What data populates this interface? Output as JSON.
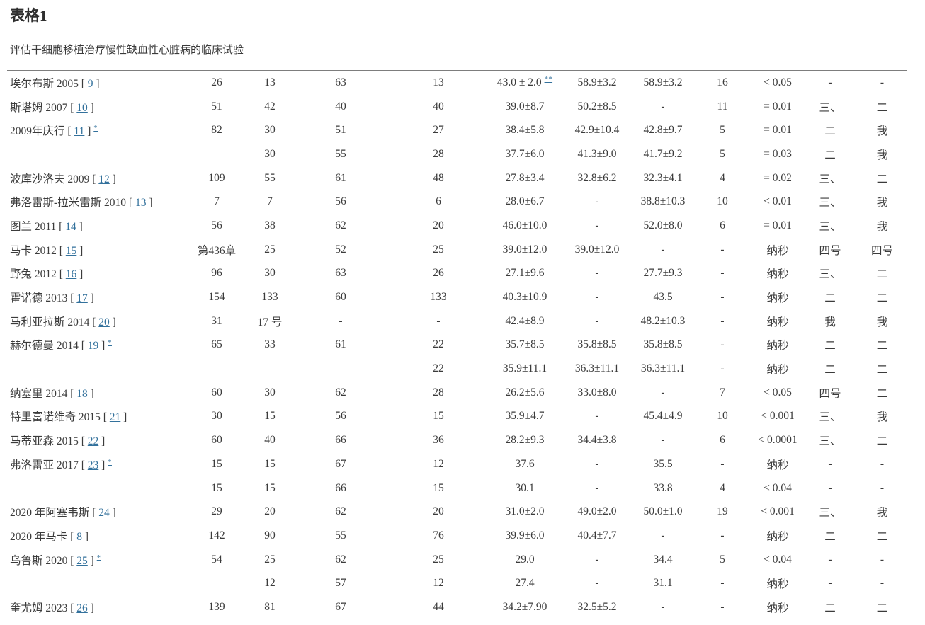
{
  "page": {
    "title": "表格1",
    "subtitle": "评估干细胞移植治疗慢性缺血性心脏病的临床试验"
  },
  "colors": {
    "text": "#3b3b3b",
    "link": "#33719c",
    "rule": "#7d7d7d"
  },
  "table": {
    "rows": [
      {
        "study": "埃尔布斯 2005",
        "ref": "9",
        "note": "",
        "lvef_sup": "**",
        "cells": [
          "26",
          "13",
          "63",
          "13",
          "43.0 ± 2.0",
          "58.9±3.2",
          "58.9±3.2",
          "16",
          "< 0.05",
          "-",
          "-"
        ]
      },
      {
        "study": "斯塔姆 2007",
        "ref": "10",
        "note": "",
        "lvef_sup": "",
        "cells": [
          "51",
          "42",
          "40",
          "40",
          "39.0±8.7",
          "50.2±8.5",
          "-",
          "11",
          "= 0.01",
          "三、",
          "二"
        ]
      },
      {
        "study": "2009年庆行",
        "ref": "11",
        "note": "*",
        "lvef_sup": "",
        "cells": [
          "82",
          "30",
          "51",
          "27",
          "38.4±5.8",
          "42.9±10.4",
          "42.8±9.7",
          "5",
          "= 0.01",
          "二",
          "我"
        ]
      },
      {
        "study": "",
        "ref": "",
        "note": "",
        "lvef_sup": "",
        "cells": [
          "",
          "30",
          "55",
          "28",
          "37.7±6.0",
          "41.3±9.0",
          "41.7±9.2",
          "5",
          "= 0.03",
          "二",
          "我"
        ]
      },
      {
        "study": "波库沙洛夫 2009",
        "ref": "12",
        "note": "",
        "lvef_sup": "",
        "cells": [
          "109",
          "55",
          "61",
          "48",
          "27.8±3.4",
          "32.8±6.2",
          "32.3±4.1",
          "4",
          "= 0.02",
          "三、",
          "二"
        ]
      },
      {
        "study": "弗洛雷斯-拉米雷斯 2010",
        "ref": "13",
        "note": "",
        "lvef_sup": "",
        "cells": [
          "7",
          "7",
          "56",
          "6",
          "28.0±6.7",
          "-",
          "38.8±10.3",
          "10",
          "< 0.01",
          "三、",
          "我"
        ]
      },
      {
        "study": "图兰 2011",
        "ref": "14",
        "note": "",
        "lvef_sup": "",
        "cells": [
          "56",
          "38",
          "62",
          "20",
          "46.0±10.0",
          "-",
          "52.0±8.0",
          "6",
          "= 0.01",
          "三、",
          "我"
        ]
      },
      {
        "study": "马卡 2012",
        "ref": "15",
        "note": "",
        "lvef_sup": "",
        "cells": [
          "第436章",
          "25",
          "52",
          "25",
          "39.0±12.0",
          "39.0±12.0",
          "-",
          "-",
          "纳秒",
          "四号",
          "四号"
        ]
      },
      {
        "study": "野兔 2012",
        "ref": "16",
        "note": "",
        "lvef_sup": "",
        "cells": [
          "96",
          "30",
          "63",
          "26",
          "27.1±9.6",
          "-",
          "27.7±9.3",
          "-",
          "纳秒",
          "三、",
          "二"
        ]
      },
      {
        "study": "霍诺德 2013",
        "ref": "17",
        "note": "",
        "lvef_sup": "",
        "cells": [
          "154",
          "133",
          "60",
          "133",
          "40.3±10.9",
          "-",
          "43.5",
          "-",
          "纳秒",
          "二",
          "二"
        ]
      },
      {
        "study": "马利亚拉斯 2014",
        "ref": "20",
        "note": "",
        "lvef_sup": "",
        "cells": [
          "31",
          "17 号",
          "-",
          "-",
          "42.4±8.9",
          "-",
          "48.2±10.3",
          "-",
          "纳秒",
          "我",
          "我"
        ]
      },
      {
        "study": "赫尔德曼 2014",
        "ref": "19",
        "note": "*",
        "lvef_sup": "",
        "cells": [
          "65",
          "33",
          "61",
          "22",
          "35.7±8.5",
          "35.8±8.5",
          "35.8±8.5",
          "-",
          "纳秒",
          "二",
          "二"
        ]
      },
      {
        "study": "",
        "ref": "",
        "note": "",
        "lvef_sup": "",
        "cells": [
          "",
          "",
          "",
          "22",
          "35.9±11.1",
          "36.3±11.1",
          "36.3±11.1",
          "-",
          "纳秒",
          "二",
          "二"
        ]
      },
      {
        "study": "纳塞里 2014",
        "ref": "18",
        "note": "",
        "lvef_sup": "",
        "cells": [
          "60",
          "30",
          "62",
          "28",
          "26.2±5.6",
          "33.0±8.0",
          "-",
          "7",
          "< 0.05",
          "四号",
          "二"
        ]
      },
      {
        "study": "特里富诺维奇 2015",
        "ref": "21",
        "note": "",
        "lvef_sup": "",
        "cells": [
          "30",
          "15",
          "56",
          "15",
          "35.9±4.7",
          "-",
          "45.4±4.9",
          "10",
          "< 0.001",
          "三、",
          "我"
        ]
      },
      {
        "study": "马蒂亚森 2015",
        "ref": "22",
        "note": "",
        "lvef_sup": "",
        "cells": [
          "60",
          "40",
          "66",
          "36",
          "28.2±9.3",
          "34.4±3.8",
          "-",
          "6",
          "< 0.0001",
          "三、",
          "二"
        ]
      },
      {
        "study": "弗洛雷亚 2017",
        "ref": "23",
        "note": "*",
        "lvef_sup": "",
        "cells": [
          "15",
          "15",
          "67",
          "12",
          "37.6",
          "-",
          "35.5",
          "-",
          "纳秒",
          "-",
          "-"
        ]
      },
      {
        "study": "",
        "ref": "",
        "note": "",
        "lvef_sup": "",
        "cells": [
          "15",
          "15",
          "66",
          "15",
          "30.1",
          "-",
          "33.8",
          "4",
          "< 0.04",
          "-",
          "-"
        ]
      },
      {
        "study": "2020 年阿塞韦斯",
        "ref": "24",
        "note": "",
        "lvef_sup": "",
        "cells": [
          "29",
          "20",
          "62",
          "20",
          "31.0±2.0",
          "49.0±2.0",
          "50.0±1.0",
          "19",
          "< 0.001",
          "三、",
          "我"
        ]
      },
      {
        "study": "2020 年马卡",
        "ref": "8",
        "note": "",
        "lvef_sup": "",
        "cells": [
          "142",
          "90",
          "55",
          "76",
          "39.9±6.0",
          "40.4±7.7",
          "-",
          "-",
          "纳秒",
          "二",
          "二"
        ]
      },
      {
        "study": "乌鲁斯 2020",
        "ref": "25",
        "note": "*",
        "lvef_sup": "",
        "cells": [
          "54",
          "25",
          "62",
          "25",
          "29.0",
          "-",
          "34.4",
          "5",
          "< 0.04",
          "-",
          "-"
        ]
      },
      {
        "study": "",
        "ref": "",
        "note": "",
        "lvef_sup": "",
        "cells": [
          "",
          "12",
          "57",
          "12",
          "27.4",
          "-",
          "31.1",
          "-",
          "纳秒",
          "-",
          "-"
        ]
      },
      {
        "study": "奎尤姆 2023",
        "ref": "26",
        "note": "",
        "lvef_sup": "",
        "cells": [
          "139",
          "81",
          "67",
          "44",
          "34.2±7.90",
          "32.5±5.2",
          "-",
          "-",
          "纳秒",
          "二",
          "二"
        ]
      }
    ]
  }
}
